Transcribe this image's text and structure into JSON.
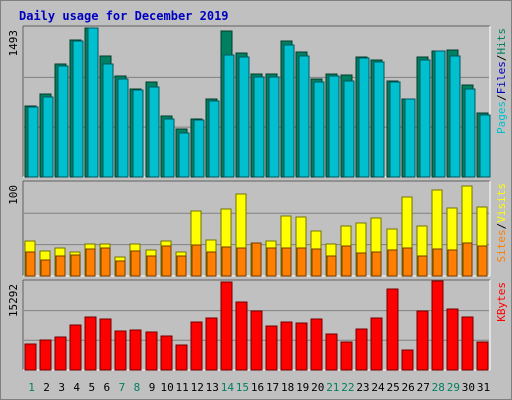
{
  "chart_data": {
    "title": "Daily usage for December 2019",
    "type": "bar",
    "categories": [
      "1",
      "2",
      "3",
      "4",
      "5",
      "6",
      "7",
      "8",
      "9",
      "10",
      "11",
      "12",
      "13",
      "14",
      "15",
      "16",
      "17",
      "18",
      "19",
      "20",
      "21",
      "22",
      "23",
      "24",
      "25",
      "26",
      "27",
      "28",
      "29",
      "30",
      "31"
    ],
    "weekend_days": [
      "1",
      "7",
      "8",
      "14",
      "15",
      "21",
      "22",
      "28",
      "29"
    ],
    "panels": [
      {
        "id": "traffic",
        "ymax": 1493,
        "ymax_label": "1493",
        "label_parts": [
          "Pages",
          "/",
          "Files",
          "/",
          "Hits"
        ],
        "label_colors": [
          "#00c0d0",
          "#000000",
          "#0000c0",
          "#000000",
          "#008060"
        ],
        "series": [
          {
            "name": "Hits",
            "color": "#008060",
            "values": [
              710,
              830,
              1130,
              1370,
              1493,
              1210,
              1010,
              880,
              950,
              610,
              480,
              580,
              780,
              1460,
              1240,
              1030,
              1030,
              1360,
              1250,
              980,
              1030,
              1020,
              1200,
              1170,
              960,
              780,
              1200,
              1260,
              1270,
              920,
              640
            ]
          },
          {
            "name": "Files",
            "color": "#0000c0",
            "values": [
              280,
              430,
              700,
              630,
              820,
              740,
              540,
              490,
              510,
              340,
              260,
              300,
              440,
              950,
              720,
              640,
              700,
              870,
              740,
              580,
              640,
              610,
              720,
              640,
              530,
              430,
              690,
              760,
              770,
              560,
              390
            ]
          },
          {
            "name": "Pages",
            "color": "#00c0d0",
            "values": [
              700,
              800,
              1110,
              1360,
              1493,
              1130,
              980,
              870,
              900,
              580,
              440,
              570,
              760,
              1220,
              1200,
              1000,
              1000,
              1320,
              1210,
              950,
              1010,
              960,
              1190,
              1150,
              950,
              780,
              1170,
              1260,
              1210,
              880,
              620
            ]
          }
        ]
      },
      {
        "id": "visits",
        "ymax": 100,
        "ymax_label": "100",
        "label_parts": [
          "Sites",
          "/",
          "Visits"
        ],
        "label_colors": [
          "#ff8000",
          "#000000",
          "#ffff00"
        ],
        "series": [
          {
            "name": "Visits",
            "color": "#ffff00",
            "values": [
              38,
              27,
              30,
              26,
              34,
              34,
              20,
              34,
              28,
              38,
              26,
              70,
              39,
              72,
              88,
              35,
              38,
              64,
              63,
              48,
              34,
              54,
              57,
              62,
              51,
              85,
              54,
              93,
              73,
              97,
              74
            ]
          },
          {
            "name": "Sites",
            "color": "#ff8000",
            "values": [
              26,
              17,
              22,
              23,
              29,
              30,
              16,
              27,
              22,
              32,
              21,
              33,
              26,
              31,
              30,
              35,
              30,
              30,
              30,
              29,
              22,
              32,
              25,
              26,
              28,
              30,
              21,
              29,
              28,
              35,
              32
            ]
          }
        ]
      },
      {
        "id": "kbytes",
        "ymax": 15292,
        "ymax_label": "15292",
        "label_parts": [
          "KBytes"
        ],
        "label_colors": [
          "#ff0000"
        ],
        "series": [
          {
            "name": "KBytes",
            "color": "#ff0000",
            "values": [
              4600,
              5300,
              5800,
              7800,
              9200,
              8800,
              6700,
              7000,
              6600,
              5900,
              4300,
              8300,
              9000,
              15300,
              11800,
              10200,
              7600,
              8300,
              8200,
              8800,
              6300,
              4800,
              7100,
              9000,
              14100,
              3500,
              10300,
              15450,
              10600,
              9200,
              4800
            ]
          }
        ]
      }
    ],
    "grid": true
  }
}
